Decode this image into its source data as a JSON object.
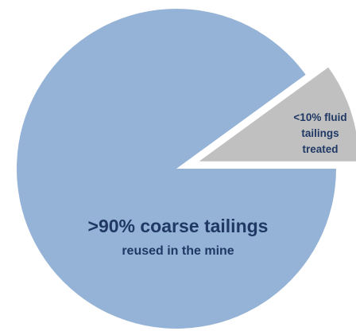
{
  "chart_data": {
    "type": "pie",
    "slices": [
      {
        "label_line1": ">90% coarse tailings",
        "label_line2": "reused in the mine",
        "value": 90,
        "color": "#95b3d7"
      },
      {
        "label_lines": [
          "<10% fluid",
          "tailings",
          "treated"
        ],
        "value": 10,
        "color": "#c0c0c0",
        "exploded": true
      }
    ],
    "label_color": "#1f3864",
    "small_label_color": "#1f3864",
    "title": "",
    "legend": "none"
  }
}
